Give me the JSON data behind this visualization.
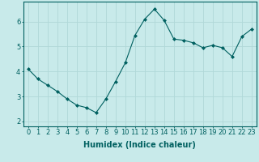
{
  "x": [
    0,
    1,
    2,
    3,
    4,
    5,
    6,
    7,
    8,
    9,
    10,
    11,
    12,
    13,
    14,
    15,
    16,
    17,
    18,
    19,
    20,
    21,
    22,
    23
  ],
  "y": [
    4.1,
    3.7,
    3.45,
    3.2,
    2.9,
    2.65,
    2.55,
    2.35,
    2.9,
    3.6,
    4.35,
    5.45,
    6.1,
    6.5,
    6.05,
    5.3,
    5.25,
    5.15,
    4.95,
    5.05,
    4.95,
    4.6,
    5.4,
    5.7
  ],
  "line_color": "#006060",
  "marker": "D",
  "marker_size": 2,
  "background_color": "#c8eaea",
  "grid_color": "#b0d8d8",
  "xlabel": "Humidex (Indice chaleur)",
  "xlabel_fontsize": 7,
  "yticks": [
    2,
    3,
    4,
    5,
    6
  ],
  "xticks": [
    0,
    1,
    2,
    3,
    4,
    5,
    6,
    7,
    8,
    9,
    10,
    11,
    12,
    13,
    14,
    15,
    16,
    17,
    18,
    19,
    20,
    21,
    22,
    23
  ],
  "xlim": [
    -0.5,
    23.5
  ],
  "ylim": [
    1.8,
    6.8
  ],
  "tick_fontsize": 6,
  "tick_color": "#006060",
  "axis_color": "#006060",
  "spine_color": "#006060"
}
